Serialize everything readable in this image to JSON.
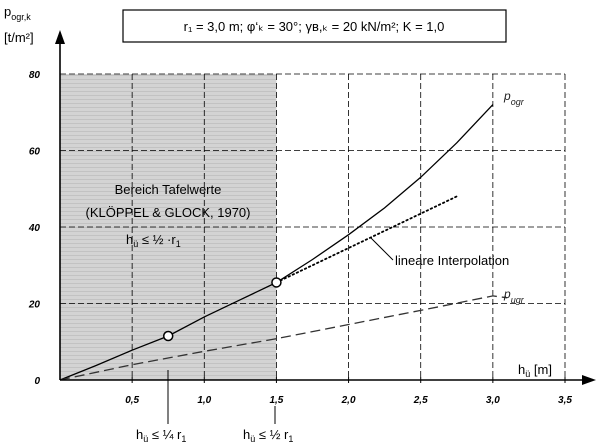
{
  "chart_data": {
    "type": "line",
    "title": "r₁ = 3,0 m; φ‘ₖ = 30°; γʙ,ₖ = 20 kN/m²; K = 1,0",
    "ylabel_main": "p",
    "ylabel_sub": "ogr,k",
    "ylabel_unit": "[t/m²]",
    "xlabel_main": "h",
    "xlabel_sub": "ü",
    "xlabel_unit": "[m]",
    "xlim": [
      0,
      3.5
    ],
    "ylim": [
      0,
      80
    ],
    "x_ticks": [
      "0,5",
      "1,0",
      "1,5",
      "2,0",
      "2,5",
      "3,0",
      "3,5"
    ],
    "x_tick_values": [
      0.5,
      1.0,
      1.5,
      2.0,
      2.5,
      3.0,
      3.5
    ],
    "y_ticks": [
      "0",
      "20",
      "40",
      "60",
      "80"
    ],
    "y_tick_values": [
      0,
      20,
      40,
      60,
      80
    ],
    "grid": true,
    "series": [
      {
        "name": "p_ogr",
        "label_main": "p",
        "label_sub": "ogr",
        "style": "solid",
        "x": [
          0,
          0.25,
          0.5,
          0.75,
          1.0,
          1.25,
          1.5,
          1.75,
          2.0,
          2.25,
          2.5,
          2.75,
          3.0
        ],
        "y": [
          0,
          3.8,
          7.8,
          11.5,
          16.5,
          21,
          25.5,
          31.5,
          38,
          45,
          53,
          62,
          72
        ]
      },
      {
        "name": "p_ugr",
        "label_main": "p",
        "label_sub": "ugr",
        "style": "dashed",
        "x": [
          0,
          0.5,
          1.0,
          1.5,
          2.0,
          2.5,
          3.0,
          3.1
        ],
        "y": [
          0,
          4,
          7.5,
          10.8,
          14.5,
          18.2,
          22,
          21.5
        ]
      },
      {
        "name": "linear-interpolation",
        "style": "dotted",
        "x": [
          1.5,
          2.75
        ],
        "y": [
          25.5,
          48
        ]
      }
    ],
    "markers": [
      {
        "x": 0.75,
        "y": 11.5
      },
      {
        "x": 1.5,
        "y": 25.5
      }
    ],
    "shaded_region": {
      "x": [
        0,
        1.5
      ],
      "y": [
        0,
        80
      ]
    },
    "annotations": {
      "region_line1": "Bereich Tafelwerte",
      "region_line2": "(KLÖPPEL & GLOCK, 1970)",
      "region_formula_a": "h",
      "region_formula_sub": "ü",
      "region_formula_b": " ≤ ½ ·r",
      "region_formula_sub2": "1",
      "interp_label": "lineare Interpolation",
      "marker1_a": "h",
      "marker1_sub": "ü",
      "marker1_b": " ≤ ¼ r",
      "marker1_sub2": "1",
      "marker2_a": "h",
      "marker2_sub": "ü",
      "marker2_b": " ≤ ½ r",
      "marker2_sub2": "1"
    }
  }
}
